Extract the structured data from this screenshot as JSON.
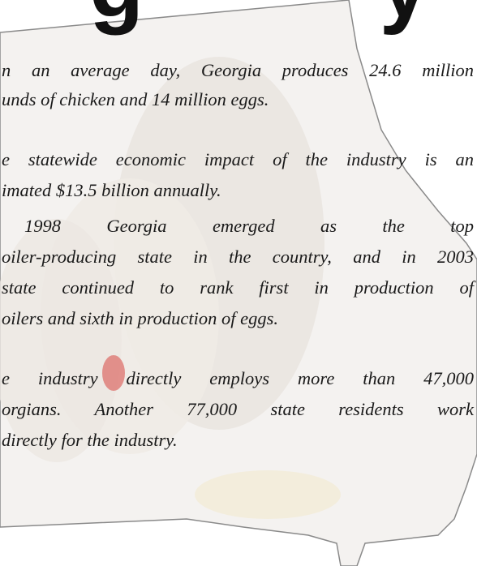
{
  "heading": "g y",
  "paragraphs": [
    [
      "n an average day, Georgia produces 24.6 million",
      "unds of chicken and 14 million eggs."
    ],
    [
      "e statewide economic impact of the industry is an",
      "imated $13.5 billion annually."
    ],
    [
      "1998 Georgia emerged as the top",
      "oiler-producing state in the country, and in 2003",
      "state continued to rank first in production of",
      "oilers and sixth in production of eggs."
    ],
    [
      "e industry directly employs more than 47,000",
      "orgians. Another 77,000 state residents work",
      "directly for the industry."
    ]
  ]
}
